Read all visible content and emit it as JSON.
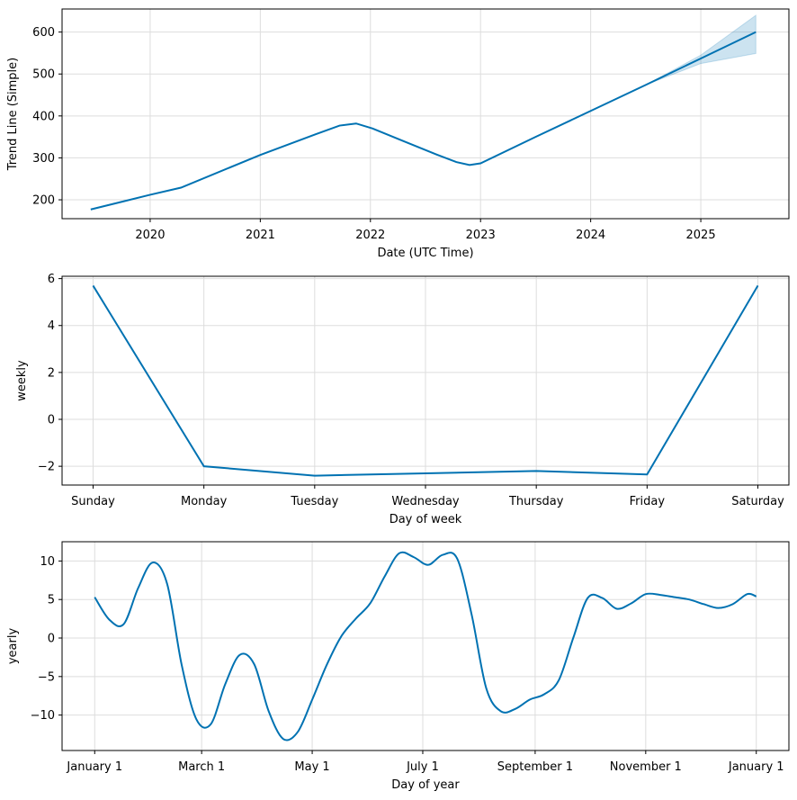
{
  "colors": {
    "line": "#0072B2",
    "band": "#0072B2",
    "grid": "#dddddd",
    "frame": "#000000"
  },
  "chart_data": [
    {
      "type": "line",
      "id": "trend",
      "xlabel": "Date (UTC Time)",
      "ylabel": "Trend Line (Simple)",
      "xlim": [
        2019.2,
        2025.8
      ],
      "ylim": [
        155,
        655
      ],
      "x_ticks": [
        2020,
        2021,
        2022,
        2023,
        2024,
        2025
      ],
      "x_tick_labels": [
        "2020",
        "2021",
        "2022",
        "2023",
        "2024",
        "2025"
      ],
      "y_ticks": [
        200,
        300,
        400,
        500,
        600
      ],
      "y_tick_labels": [
        "200",
        "300",
        "400",
        "500",
        "600"
      ],
      "grid": true,
      "series": [
        {
          "x": [
            2019.46,
            2020.0,
            2020.28,
            2021.0,
            2021.5,
            2021.72,
            2021.87,
            2022.02,
            2022.3,
            2022.6,
            2022.78,
            2022.9,
            2023.0,
            2023.5,
            2024.0,
            2024.5,
            2025.0,
            2025.5
          ],
          "y": [
            177,
            212,
            229,
            307,
            356,
            377,
            382,
            370,
            340,
            308,
            290,
            283,
            287,
            350,
            412,
            474,
            537,
            600
          ],
          "upper": [
            null,
            null,
            null,
            null,
            null,
            null,
            null,
            null,
            null,
            null,
            null,
            null,
            null,
            null,
            null,
            474,
            545,
            640
          ],
          "lower": [
            null,
            null,
            null,
            null,
            null,
            null,
            null,
            null,
            null,
            null,
            null,
            null,
            null,
            null,
            null,
            474,
            525,
            549
          ]
        }
      ]
    },
    {
      "type": "line",
      "id": "weekly",
      "xlabel": "Day of week",
      "ylabel": "weekly",
      "xlim": [
        -0.28,
        6.28
      ],
      "ylim": [
        -2.8,
        6.1
      ],
      "categories": [
        "Sunday",
        "Monday",
        "Tuesday",
        "Wednesday",
        "Thursday",
        "Friday",
        "Saturday"
      ],
      "y_ticks": [
        -2,
        0,
        2,
        4,
        6
      ],
      "y_tick_labels": [
        "−2",
        "0",
        "2",
        "4",
        "6"
      ],
      "grid": true,
      "series": [
        {
          "values": [
            5.7,
            -2.0,
            -2.4,
            -2.3,
            -2.2,
            -2.35,
            5.7
          ]
        }
      ]
    },
    {
      "type": "line",
      "id": "yearly",
      "xlabel": "Day of year",
      "ylabel": "yearly",
      "xlim": [
        -18,
        383
      ],
      "ylim": [
        -14.6,
        12.5
      ],
      "x_ticks": [
        0,
        59,
        120,
        181,
        243,
        304,
        365
      ],
      "x_tick_labels": [
        "January 1",
        "March 1",
        "May 1",
        "July 1",
        "September 1",
        "November 1",
        "January 1"
      ],
      "y_ticks": [
        10,
        5,
        0,
        -5,
        -10
      ],
      "y_tick_labels": [
        "10",
        "5",
        "0",
        "−5",
        "−10"
      ],
      "grid": true,
      "series": [
        {
          "x": [
            0,
            8,
            16,
            24,
            32,
            40,
            48,
            56,
            64,
            72,
            80,
            88,
            96,
            104,
            112,
            120,
            128,
            136,
            144,
            152,
            160,
            168,
            176,
            184,
            192,
            200,
            208,
            216,
            224,
            232,
            240,
            248,
            256,
            264,
            272,
            280,
            288,
            296,
            304,
            312,
            320,
            328,
            336,
            344,
            352,
            360,
            365
          ],
          "y": [
            5.3,
            2.4,
            1.8,
            6.5,
            9.8,
            7.0,
            -3.5,
            -10.5,
            -11.2,
            -6.0,
            -2.2,
            -3.4,
            -9.5,
            -13.1,
            -12.2,
            -8.0,
            -3.5,
            0.2,
            2.5,
            4.5,
            8.0,
            11.0,
            10.5,
            9.5,
            10.8,
            10.3,
            3.0,
            -6.5,
            -9.5,
            -9.2,
            -8.0,
            -7.3,
            -5.5,
            0.0,
            5.2,
            5.2,
            3.8,
            4.5,
            5.7,
            5.4,
            5.4,
            5.4,
            5.4,
            5.4,
            5.4,
            5.4,
            5.4
          ],
          "comment": ""
        }
      ]
    }
  ]
}
